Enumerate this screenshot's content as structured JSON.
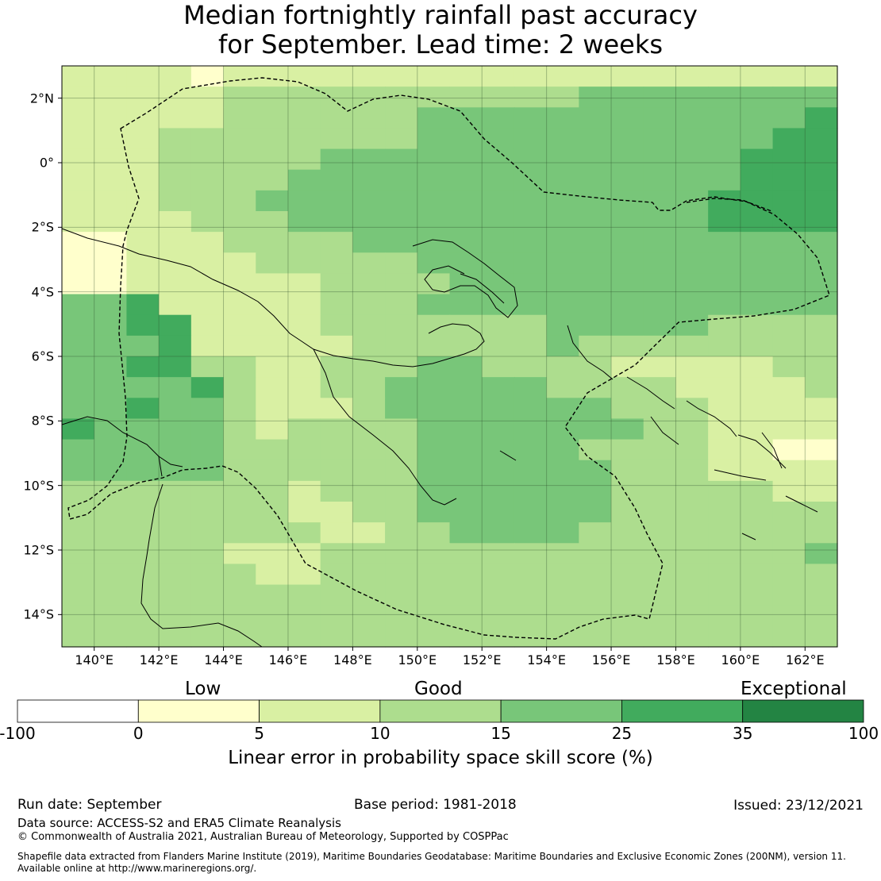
{
  "title": {
    "line1": "Median fortnightly rainfall past accuracy",
    "line2": "for September. Lead time: 2 weeks"
  },
  "map": {
    "lon_range": [
      139,
      163
    ],
    "lat_range": [
      -15,
      3
    ],
    "lon_labels": [
      "140°E",
      "142°E",
      "144°E",
      "146°E",
      "148°E",
      "150°E",
      "152°E",
      "154°E",
      "156°E",
      "158°E",
      "160°E",
      "162°E"
    ],
    "lat_labels": [
      "2°N",
      "0°",
      "2°S",
      "4°S",
      "6°S",
      "8°S",
      "10°S",
      "12°S",
      "14°S"
    ],
    "grid_rows": [
      "111101111111111111111111",
      "111112222222222233333333",
      "111112222223333333333334",
      "111222222223333333333344",
      "111222223333333333333444",
      "111222233333333333333444",
      "111222333333333333334444",
      "111122233333333333334444",
      "001112222333333333333333",
      "001111222223333333333333",
      "001111112222333333333333",
      "334111112223333333333333",
      "334411112222222333332222",
      "333411111222222322222222",
      "334422112223322221111122",
      "333342112233333222211112",
      "334332111233333332221111",
      "433332122223333333221111",
      "333332222223333322221100",
      "333332222223333332221111",
      "222222212223333332222211",
      "222222211223333332222222",
      "222222221122333322222222",
      "222221112222222222222223",
      "222222112222222222222222",
      "222222222222222222222222",
      "222222222222222222222222",
      "222222222222222222222222"
    ],
    "colors": [
      "#ffffcc",
      "#d9f0a3",
      "#addd8e",
      "#78c679",
      "#41ab5d",
      "#238443"
    ]
  },
  "colorbar": {
    "bin_colors": [
      "#ffffff",
      "#ffffcc",
      "#d9f0a3",
      "#addd8e",
      "#78c679",
      "#41ab5d",
      "#238443"
    ],
    "ticks": [
      "-100",
      "0",
      "5",
      "10",
      "15",
      "25",
      "35",
      "100"
    ],
    "categories": {
      "low": "Low",
      "good": "Good",
      "exceptional": "Exceptional"
    },
    "label": "Linear error in probability space skill score (%)"
  },
  "footer": {
    "run_date": "Run date: September",
    "base_period": "Base period: 1981-2018",
    "issued": "Issued: 23/12/2021",
    "data_source": "Data source: ACCESS-S2 and ERA5 Climate Reanalysis",
    "copyright": "© Commonwealth of Australia 2021, Australian Bureau of Meteorology, Supported by COSPPac",
    "shapefile": "Shapefile data extracted from Flanders Marine Institute (2019), Maritime Boundaries Geodatabase: Maritime Boundaries and Exclusive Economic Zones (200NM), version 11.",
    "available": "Available online at http://www.marineregions.org/."
  }
}
